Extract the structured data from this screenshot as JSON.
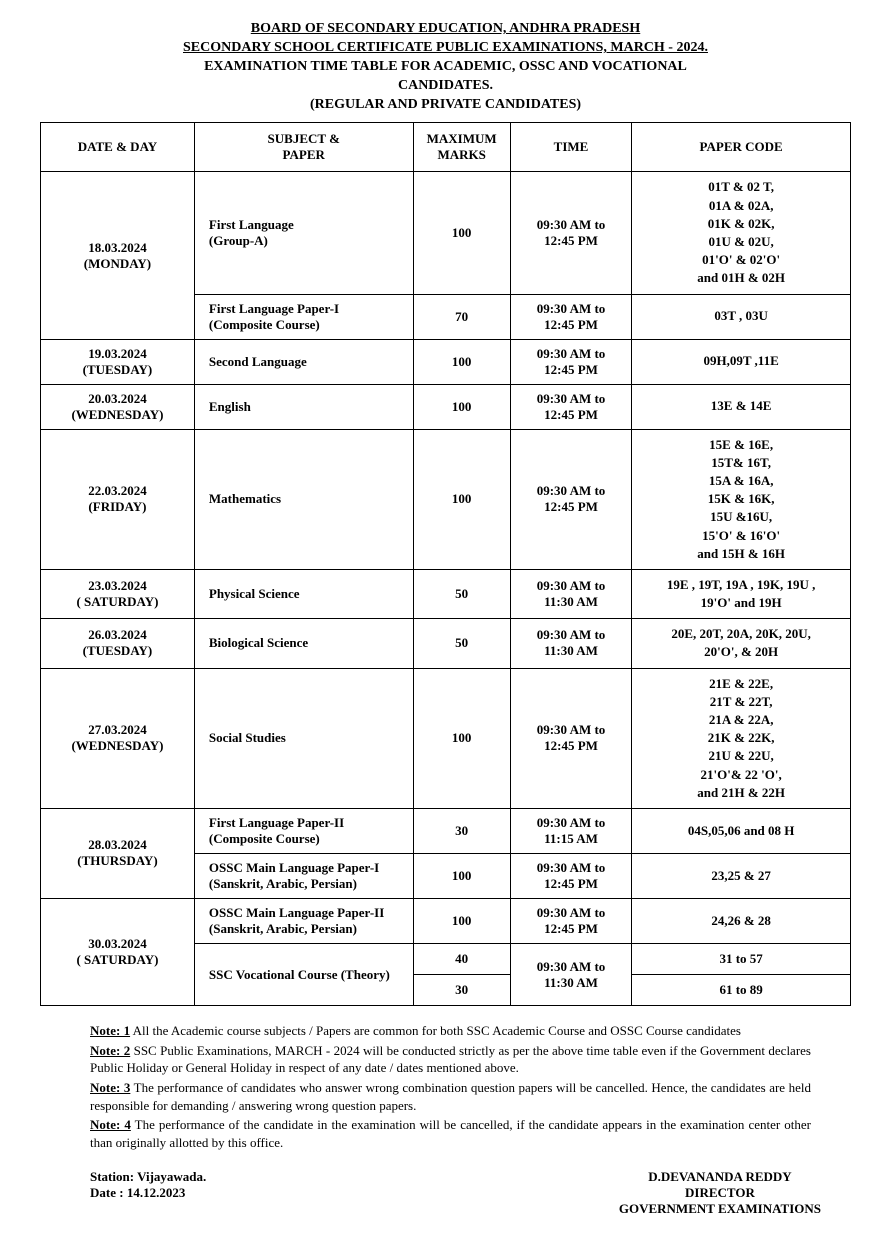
{
  "header": {
    "line1": "BOARD OF SECONDARY EDUCATION, ANDHRA PRADESH",
    "line2": "SECONDARY SCHOOL CERTIFICATE PUBLIC EXAMINATIONS, MARCH - 2024.",
    "line3": "EXAMINATION TIME TABLE FOR ACADEMIC, OSSC AND VOCATIONAL",
    "line4": "CANDIDATES.",
    "line5": "(REGULAR AND PRIVATE CANDIDATES)"
  },
  "columns": {
    "date": "DATE & DAY",
    "subject": "SUBJECT &\nPAPER",
    "marks": "MAXIMUM\nMARKS",
    "time": "TIME",
    "code": "PAPER CODE"
  },
  "rows": [
    {
      "date": "18.03.2024\n(MONDAY)",
      "date_rowspan": 2,
      "subject": "First Language\n(Group-A)",
      "marks": "100",
      "time": "09:30 AM to\n12:45 PM",
      "code": "01T & 02 T,\n01A & 02A,\n01K & 02K,\n01U & 02U,\n01'O' & 02'O'\nand 01H & 02H"
    },
    {
      "subject": "First Language Paper-I\n(Composite Course)",
      "marks": "70",
      "time": "09:30 AM  to\n12:45 PM",
      "code": "03T , 03U"
    },
    {
      "date": "19.03.2024\n(TUESDAY)",
      "subject": "Second Language",
      "marks": "100",
      "time": "09:30 AM to\n12:45 PM",
      "code": "09H,09T ,11E"
    },
    {
      "date": "20.03.2024\n(WEDNESDAY)",
      "subject": "English",
      "marks": "100",
      "time": "09:30 AM to\n12:45 PM",
      "code": "13E & 14E"
    },
    {
      "date": "22.03.2024\n(FRIDAY)",
      "subject": "Mathematics",
      "marks": "100",
      "time": "09:30 AM to\n12:45 PM",
      "code": "15E & 16E,\n15T& 16T,\n15A & 16A,\n15K & 16K,\n15U &16U,\n15'O' & 16'O'\nand 15H & 16H"
    },
    {
      "date": "23.03.2024\n( SATURDAY)",
      "subject": "Physical Science",
      "marks": "50",
      "time": "09:30 AM to\n11:30 AM",
      "code": "19E , 19T, 19A , 19K, 19U ,\n19'O' and 19H"
    },
    {
      "date": "26.03.2024\n(TUESDAY)",
      "subject": "Biological Science",
      "marks": "50",
      "time": "09:30 AM to\n11:30 AM",
      "code": "20E, 20T, 20A, 20K, 20U,\n20'O', & 20H"
    },
    {
      "date": "27.03.2024\n(WEDNESDAY)",
      "subject": "Social Studies",
      "marks": "100",
      "time": "09:30 AM to\n12:45 PM",
      "code": "21E & 22E,\n21T & 22T,\n21A & 22A,\n21K & 22K,\n21U & 22U,\n21'O'& 22 'O',\nand 21H & 22H"
    },
    {
      "date": "28.03.2024\n(THURSDAY)",
      "date_rowspan": 2,
      "subject": "First Language Paper-II\n(Composite Course)",
      "marks": "30",
      "time": "09:30 AM to\n11:15 AM",
      "code": "04S,05,06 and 08 H"
    },
    {
      "subject": "OSSC Main Language Paper-I\n(Sanskrit, Arabic, Persian)",
      "marks": "100",
      "time": "09:30 AM to\n12:45 PM",
      "code": "23,25 & 27"
    },
    {
      "date": "30.03.2024\n( SATURDAY)",
      "date_rowspan": 3,
      "subject": "OSSC Main Language Paper-II\n(Sanskrit, Arabic, Persian)",
      "marks": "100",
      "time": "09:30 AM to\n12:45 PM",
      "code": "24,26 & 28"
    },
    {
      "subject": "SSC Vocational Course (Theory)",
      "subject_rowspan": 2,
      "marks": "40",
      "time": "09:30 AM to\n11:30 AM",
      "time_rowspan": 2,
      "code": "31 to 57"
    },
    {
      "marks": "30",
      "code": "61 to 89"
    }
  ],
  "notes": {
    "n1_label": "Note: 1",
    "n1_text": " All the Academic course subjects / Papers are common for both SSC Academic  Course and OSSC Course candidates",
    "n2_label": "Note: 2",
    "n2_text": " SSC Public Examinations, MARCH - 2024 will be conducted strictly as per the above time  table even if the Government declares Public Holiday or General Holiday in respect of any date / dates mentioned above.",
    "n3_label": "Note: 3",
    "n3_text": " The performance of candidates who answer wrong combination question papers will be cancelled. Hence, the candidates are held responsible for demanding / answering wrong question papers.",
    "n4_label": "Note: 4",
    "n4_text": " The performance of the candidate in the examination will be cancelled, if the candidate appears in the examination center other than originally allotted by this office."
  },
  "footer": {
    "station": "Station: Vijayawada.",
    "date": "Date   :   14.12.2023",
    "name": "D.DEVANANDA REDDY",
    "title": "DIRECTOR",
    "dept": "GOVERNMENT EXAMINATIONS"
  }
}
